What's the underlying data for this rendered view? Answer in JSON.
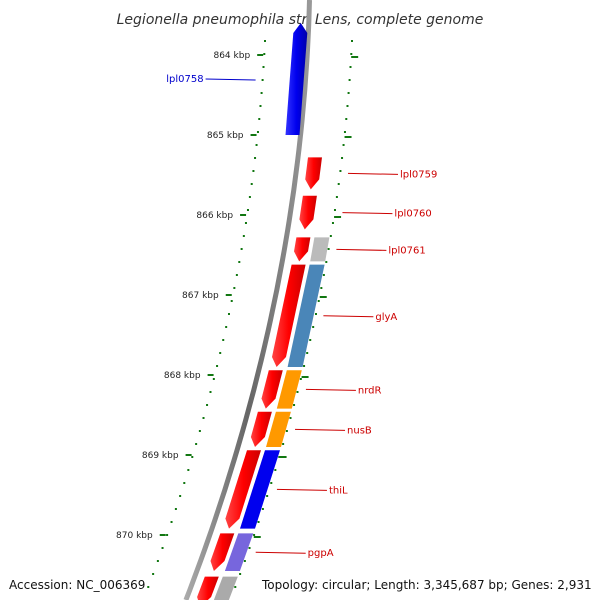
{
  "title": "Legionella pneumophila str. Lens, complete genome",
  "accession_label": "Accession: NC_006369",
  "summary_label": "Topology: circular; Length: 3,345,687 bp; Genes: 2,931",
  "colors": {
    "forward_gene": "#ff0000",
    "reverse_gene": "#0000ee",
    "backbone": "#777777",
    "tick_dots": "#117711",
    "tick_label": "#222222",
    "gene_label_forward": "#cc0000",
    "gene_label_reverse": "#0000cc"
  },
  "scale": {
    "unit": "kbp",
    "ticks": [
      {
        "label": "864 kbp"
      },
      {
        "label": "865 kbp"
      },
      {
        "label": "866 kbp"
      },
      {
        "label": "867 kbp"
      },
      {
        "label": "868 kbp"
      },
      {
        "label": "869 kbp"
      },
      {
        "label": "870 kbp"
      }
    ]
  },
  "genes": [
    {
      "name": "lpl0758",
      "strand": "reverse",
      "start_kbp": 863.6,
      "end_kbp": 865.0,
      "cog_color": "#3333ff"
    },
    {
      "name": "lpl0759",
      "strand": "forward",
      "start_kbp": 865.28,
      "end_kbp": 865.68,
      "cog_color": ""
    },
    {
      "name": "lpl0760",
      "strand": "forward",
      "start_kbp": 865.76,
      "end_kbp": 866.18,
      "cog_color": ""
    },
    {
      "name": "lpl0761",
      "strand": "forward",
      "start_kbp": 866.28,
      "end_kbp": 866.58,
      "cog_color": "#bbbbbb"
    },
    {
      "name": "glyA",
      "strand": "forward",
      "start_kbp": 866.62,
      "end_kbp": 867.9,
      "cog_color": "#4a86b8"
    },
    {
      "name": "nrdR",
      "strand": "forward",
      "start_kbp": 867.94,
      "end_kbp": 868.42,
      "cog_color": "#ff9900"
    },
    {
      "name": "nusB",
      "strand": "forward",
      "start_kbp": 868.46,
      "end_kbp": 868.9,
      "cog_color": "#ff9900"
    },
    {
      "name": "thiL",
      "strand": "forward",
      "start_kbp": 868.94,
      "end_kbp": 869.92,
      "cog_color": "#0000ee"
    },
    {
      "name": "pgpA",
      "strand": "forward",
      "start_kbp": 869.98,
      "end_kbp": 870.45,
      "cog_color": "#7766dd"
    },
    {
      "name": "",
      "strand": "forward",
      "start_kbp": 870.52,
      "end_kbp": 870.9,
      "cog_color": "#aaaaaa"
    }
  ],
  "visible_gene_labels": [
    "lpl0758",
    "lpl0759",
    "lpl0760",
    "lpl0761",
    "glyA",
    "nrdR",
    "nusB",
    "thiL",
    "pgpA"
  ],
  "view": {
    "start_kbp": 863.6,
    "end_kbp": 870.9
  }
}
